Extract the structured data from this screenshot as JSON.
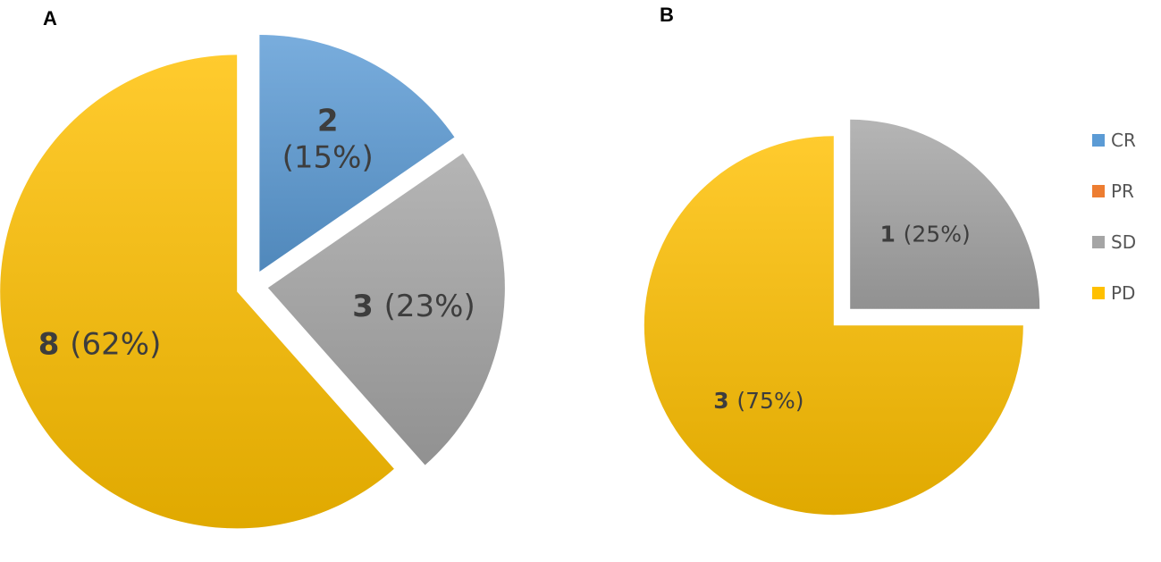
{
  "colors": {
    "CR": "#5b9bd5",
    "PR": "#ed7d31",
    "SD": "#a5a5a5",
    "PD": "#ffc000"
  },
  "chart_data": [
    {
      "type": "pie",
      "panel": "A",
      "exploded": true,
      "slices": [
        {
          "category": "CR",
          "count": 2,
          "percent_label": "(15%)"
        },
        {
          "category": "PR",
          "count": 0,
          "percent_label": ""
        },
        {
          "category": "SD",
          "count": 3,
          "percent_label": "(23%)"
        },
        {
          "category": "PD",
          "count": 8,
          "percent_label": "(62%)"
        }
      ]
    },
    {
      "type": "pie",
      "panel": "B",
      "exploded": true,
      "slices": [
        {
          "category": "CR",
          "count": 0,
          "percent_label": ""
        },
        {
          "category": "PR",
          "count": 0,
          "percent_label": ""
        },
        {
          "category": "SD",
          "count": 1,
          "percent_label": "(25%)"
        },
        {
          "category": "PD",
          "count": 3,
          "percent_label": "(75%)"
        }
      ]
    }
  ],
  "legend": {
    "placement": "right",
    "items": [
      "CR",
      "PR",
      "SD",
      "PD"
    ]
  }
}
